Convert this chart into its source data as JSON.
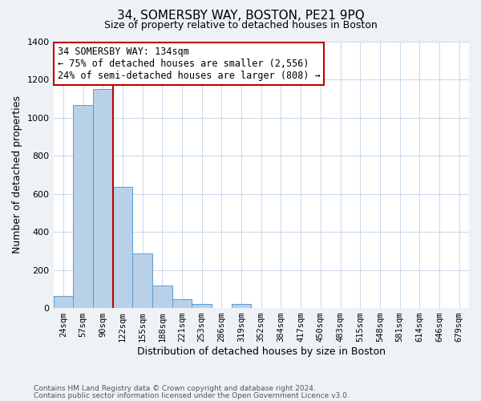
{
  "title": "34, SOMERSBY WAY, BOSTON, PE21 9PQ",
  "subtitle": "Size of property relative to detached houses in Boston",
  "xlabel": "Distribution of detached houses by size in Boston",
  "ylabel": "Number of detached properties",
  "footnote1": "Contains HM Land Registry data © Crown copyright and database right 2024.",
  "footnote2": "Contains public sector information licensed under the Open Government Licence v3.0.",
  "bar_labels": [
    "24sqm",
    "57sqm",
    "90sqm",
    "122sqm",
    "155sqm",
    "188sqm",
    "221sqm",
    "253sqm",
    "286sqm",
    "319sqm",
    "352sqm",
    "384sqm",
    "417sqm",
    "450sqm",
    "483sqm",
    "515sqm",
    "548sqm",
    "581sqm",
    "614sqm",
    "646sqm",
    "679sqm"
  ],
  "bar_values": [
    65,
    1065,
    1150,
    635,
    285,
    120,
    48,
    20,
    0,
    20,
    0,
    0,
    0,
    0,
    0,
    0,
    0,
    0,
    0,
    0,
    0
  ],
  "bar_color": "#b8d0e8",
  "bar_edge_color": "#5b9bd5",
  "ylim": [
    0,
    1400
  ],
  "yticks": [
    0,
    200,
    400,
    600,
    800,
    1000,
    1200,
    1400
  ],
  "vline_x": 2.5,
  "vline_color": "#c00000",
  "annotation_title": "34 SOMERSBY WAY: 134sqm",
  "annotation_line1": "← 75% of detached houses are smaller (2,556)",
  "annotation_line2": "24% of semi-detached houses are larger (808) →",
  "annotation_box_color": "#ffffff",
  "annotation_box_edge": "#c00000",
  "background_color": "#eef2f7",
  "plot_bg_color": "#ffffff",
  "grid_color": "#c8d8ea",
  "title_fontsize": 11,
  "subtitle_fontsize": 9,
  "ylabel_fontsize": 9,
  "xlabel_fontsize": 9,
  "annotation_fontsize": 8.5,
  "tick_fontsize": 7.5,
  "footnote_fontsize": 6.5
}
